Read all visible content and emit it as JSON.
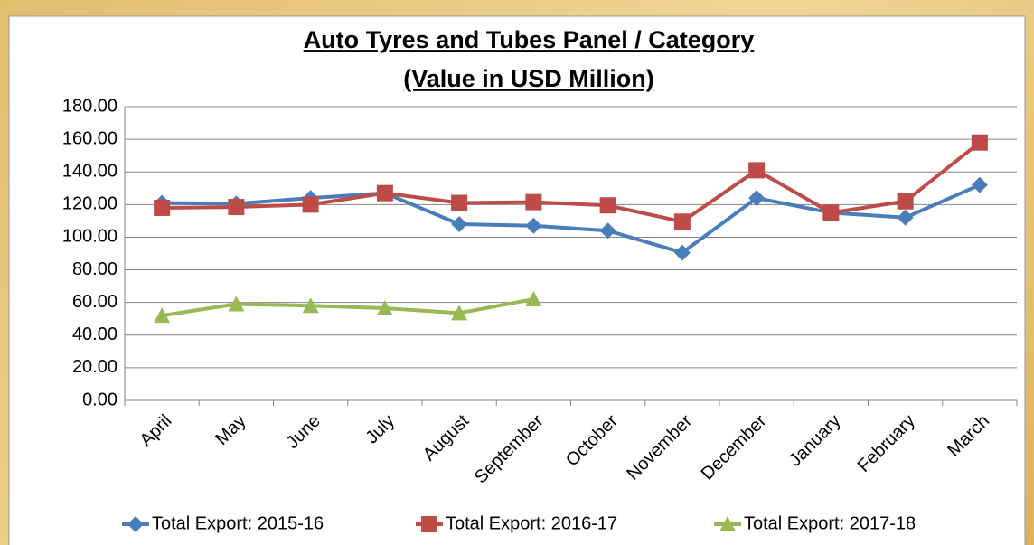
{
  "chart_data": {
    "type": "line",
    "title": "Auto Tyres and Tubes Panel / Category",
    "subtitle": "(Value in USD Million)",
    "categories": [
      "April",
      "May",
      "June",
      "July",
      "August",
      "September",
      "October",
      "November",
      "December",
      "January",
      "February",
      "March"
    ],
    "series": [
      {
        "name": "Total Export: 2015-16",
        "color": "#4a7ebb",
        "marker": "diamond",
        "values": [
          121,
          120.5,
          124,
          127,
          108,
          107,
          104,
          90.5,
          124,
          115,
          112,
          132
        ]
      },
      {
        "name": "Total Export: 2016-17",
        "color": "#be4b48",
        "marker": "square",
        "values": [
          118,
          118.5,
          120,
          127,
          121,
          121.5,
          119.5,
          109.5,
          141,
          115,
          122,
          158
        ]
      },
      {
        "name": "Total Export: 2017-18",
        "color": "#98b954",
        "marker": "triangle",
        "values": [
          52,
          59,
          58,
          56.5,
          53.5,
          62,
          null,
          null,
          null,
          null,
          null,
          null
        ]
      }
    ],
    "ylim": [
      0,
      180
    ],
    "yticks": [
      {
        "value": 0,
        "label": "0.00"
      },
      {
        "value": 20,
        "label": "20.00"
      },
      {
        "value": 40,
        "label": "40.00"
      },
      {
        "value": 60,
        "label": "60.00"
      },
      {
        "value": 80,
        "label": "80.00"
      },
      {
        "value": 100,
        "label": "100.00"
      },
      {
        "value": 120,
        "label": "120.00"
      },
      {
        "value": 140,
        "label": "140.00"
      },
      {
        "value": 160,
        "label": "160.00"
      },
      {
        "value": 180,
        "label": "180.00"
      }
    ],
    "grid": true,
    "legend": "bottom"
  }
}
